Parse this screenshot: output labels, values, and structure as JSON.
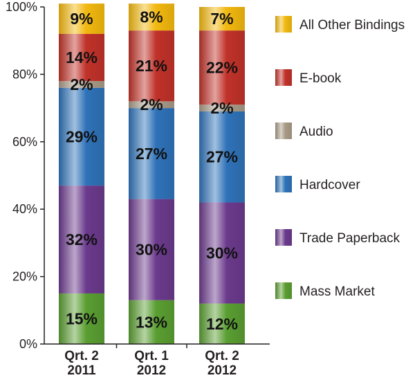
{
  "chart_data": {
    "type": "bar",
    "stacked": true,
    "categories": [
      "Qrt. 2\n2011",
      "Qrt. 1\n2012",
      "Qrt. 2\n2012"
    ],
    "series": [
      {
        "name": "Mass Market",
        "values": [
          15,
          13,
          12
        ],
        "color": "#5a9e32"
      },
      {
        "name": "Trade Paperback",
        "values": [
          32,
          30,
          30
        ],
        "color": "#6b3a8c"
      },
      {
        "name": "Hardcover",
        "values": [
          29,
          27,
          27
        ],
        "color": "#2f72b8"
      },
      {
        "name": "Audio",
        "values": [
          2,
          2,
          2
        ],
        "color": "#a89a86"
      },
      {
        "name": "E-book",
        "values": [
          14,
          21,
          22
        ],
        "color": "#c0322a"
      },
      {
        "name": "All Other Bindings",
        "values": [
          9,
          8,
          7
        ],
        "color": "#f2b80f"
      }
    ],
    "data_labels": [
      [
        "15%",
        "13%",
        "12%"
      ],
      [
        "32%",
        "30%",
        "30%"
      ],
      [
        "29%",
        "27%",
        "27%"
      ],
      [
        "2%",
        "2%",
        "2%"
      ],
      [
        "14%",
        "21%",
        "22%"
      ],
      [
        "9%",
        "8%",
        "7%"
      ]
    ],
    "y_ticks": [
      "0%",
      "20%",
      "40%",
      "60%",
      "80%",
      "100%"
    ],
    "ylim": [
      0,
      100
    ],
    "legend_position": "right",
    "legend_order": [
      "All Other Bindings",
      "E-book",
      "Audio",
      "Hardcover",
      "Trade Paperback",
      "Mass Market"
    ],
    "grid": false
  }
}
